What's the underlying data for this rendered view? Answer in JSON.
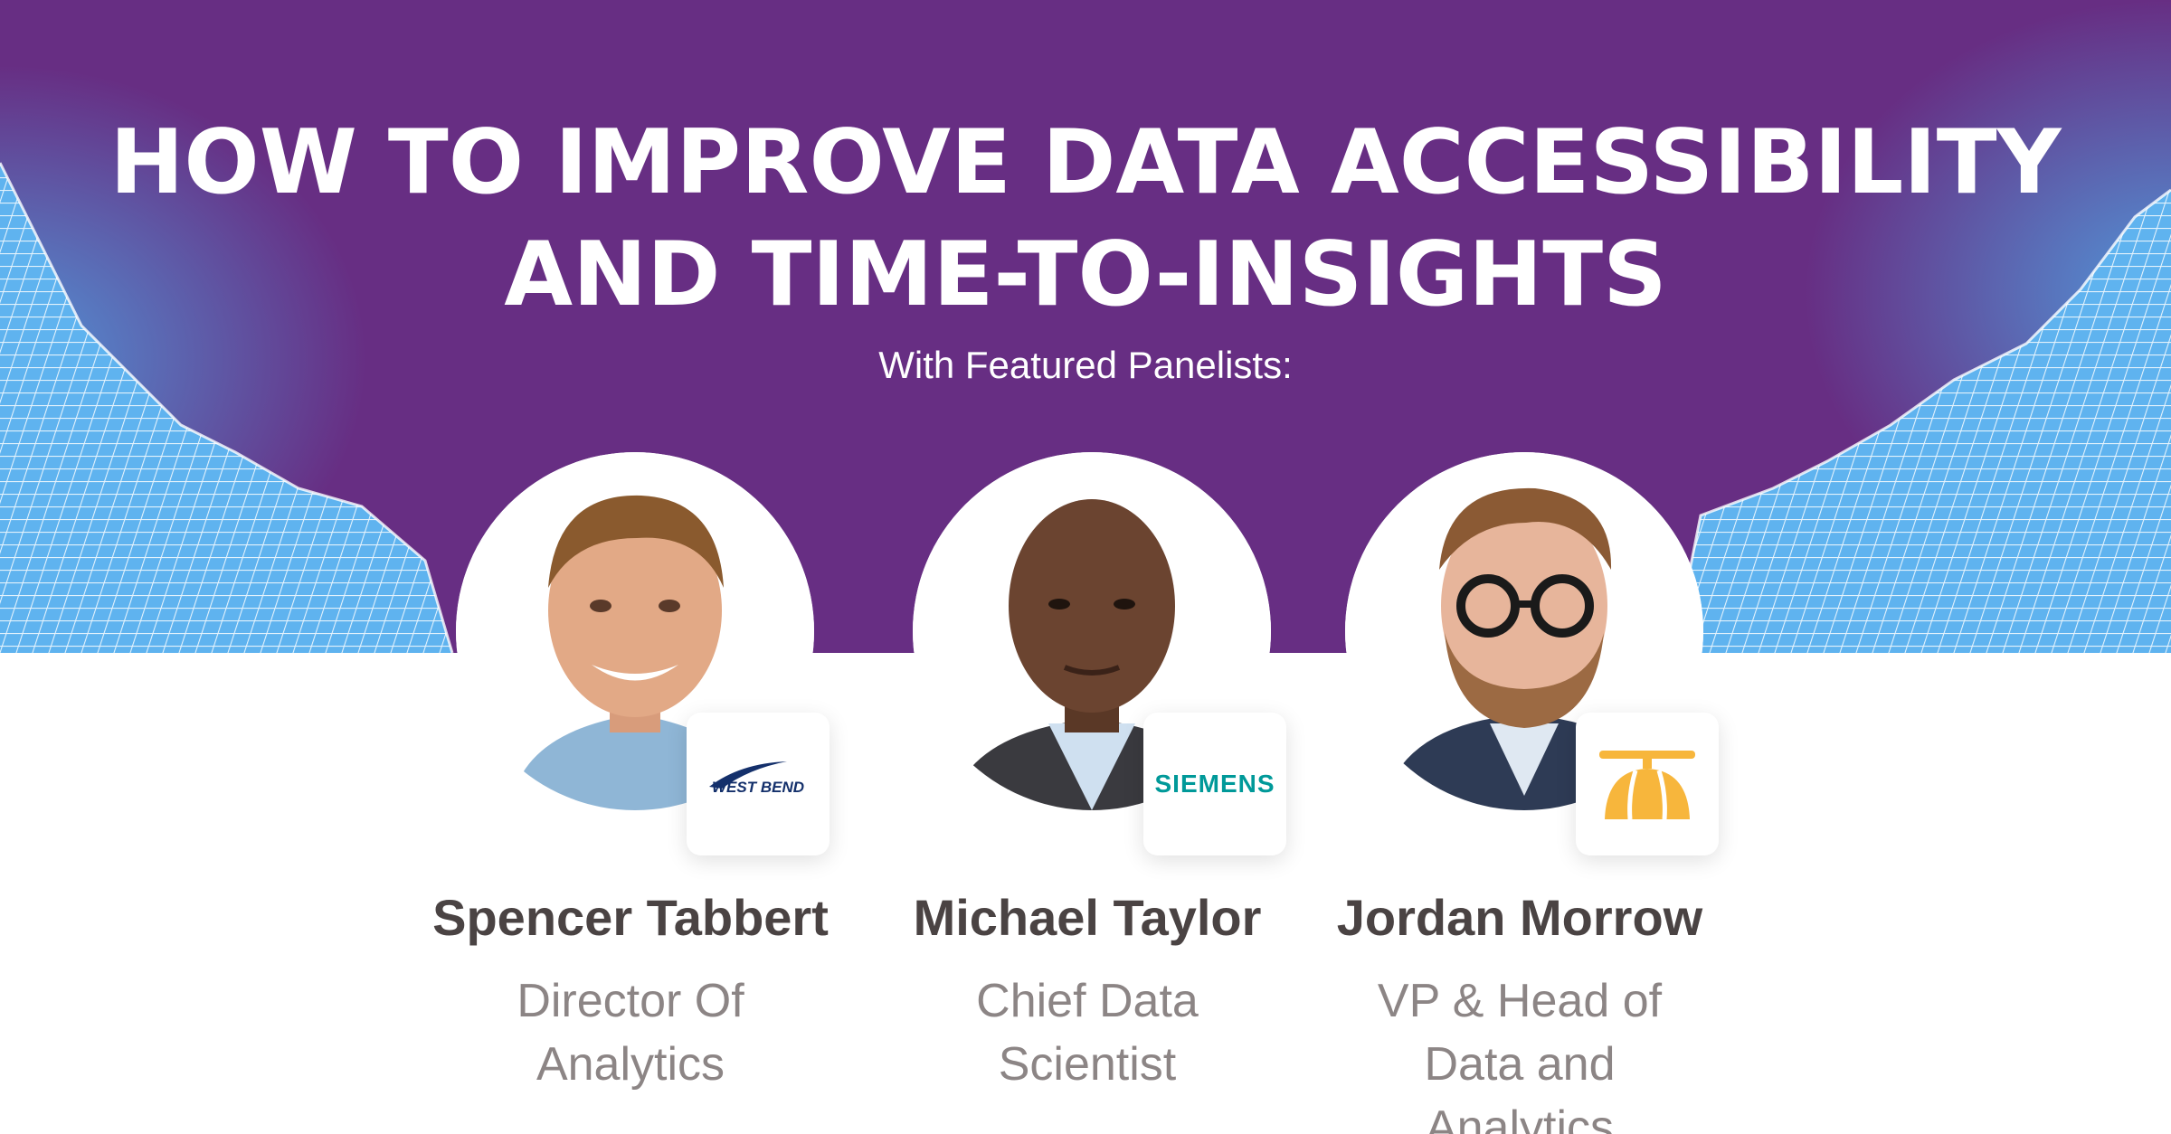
{
  "header": {
    "title": "HOW TO IMPROVE DATA ACCESSIBILITY AND TIME-TO-INSIGHTS",
    "subtitle": "With Featured Panelists:"
  },
  "colors": {
    "banner_purple": "#672e83",
    "wireframe_blue": "#4fa2e2",
    "name_text": "#4a4343",
    "role_text": "#8c8585"
  },
  "panelists": [
    {
      "name": "Spencer Tabbert",
      "role": "Director Of Analytics",
      "photo": "portrait-photo",
      "logo": {
        "name": "west-bend-logo",
        "text": "WEST BEND"
      }
    },
    {
      "name": "Michael Taylor",
      "role": "Chief Data Scientist",
      "photo": "portrait-photo",
      "logo": {
        "name": "siemens-logo",
        "text": "SIEMENS"
      }
    },
    {
      "name": "Jordan Morrow",
      "role": "VP & Head of Data and Analytics",
      "photo": "portrait-photo",
      "logo": {
        "name": "propeller-hat-logo",
        "text": ""
      }
    }
  ]
}
